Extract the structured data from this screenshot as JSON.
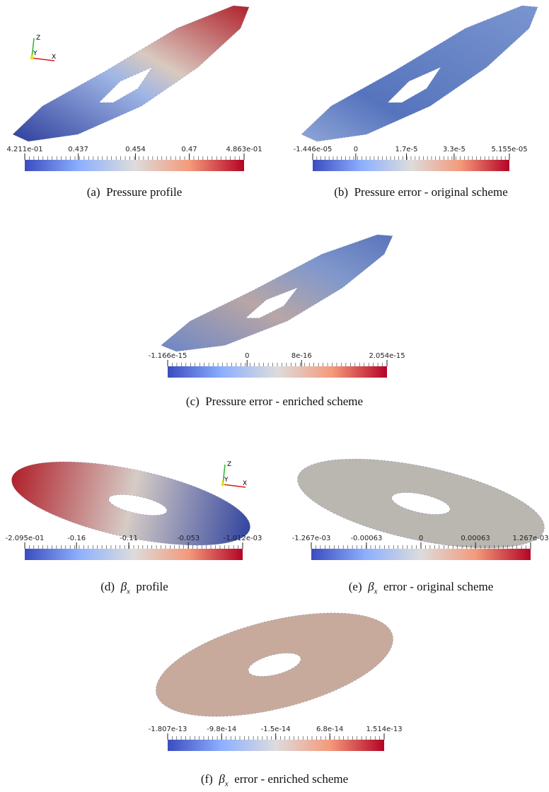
{
  "panels": [
    {
      "caption": {
        "label": "(a)",
        "text": "Pressure profile"
      },
      "colorbar": [
        "4.211e-01",
        "0.437",
        "0.454",
        "0.47",
        "4.863e-01"
      ],
      "axes": [
        "Z",
        "Y",
        "X"
      ]
    },
    {
      "caption": {
        "label": "(b)",
        "text": "Pressure error - original scheme"
      },
      "colorbar": [
        "-1.446e-05",
        "0",
        "1.7e-5",
        "3.3e-5",
        "5.155e-05"
      ]
    },
    {
      "caption": {
        "label": "(c)",
        "text": "Pressure error - enriched scheme"
      },
      "colorbar": [
        "-1.166e-15",
        "0",
        "8e-16",
        "2.054e-15"
      ]
    },
    {
      "caption": {
        "label": "(d)",
        "symbol": "β",
        "subscript": "x",
        "text": "profile"
      },
      "colorbar": [
        "-2.095e-01",
        "-0.16",
        "-0.11",
        "-0.053",
        "-1.012e-03"
      ],
      "axes": [
        "Z",
        "Y",
        "X"
      ]
    },
    {
      "caption": {
        "label": "(e)",
        "symbol": "β",
        "subscript": "x",
        "text": "error - original scheme"
      },
      "colorbar": [
        "-1.267e-03",
        "-0.00063",
        "0",
        "0.00063",
        "1.267e-03"
      ]
    },
    {
      "caption": {
        "label": "(f)",
        "symbol": "β",
        "subscript": "x",
        "text": "error - enriched scheme"
      },
      "colorbar": [
        "-1.807e-13",
        "-9.8e-14",
        "-1.5e-14",
        "6.8e-14",
        "1.514e-13"
      ]
    }
  ]
}
